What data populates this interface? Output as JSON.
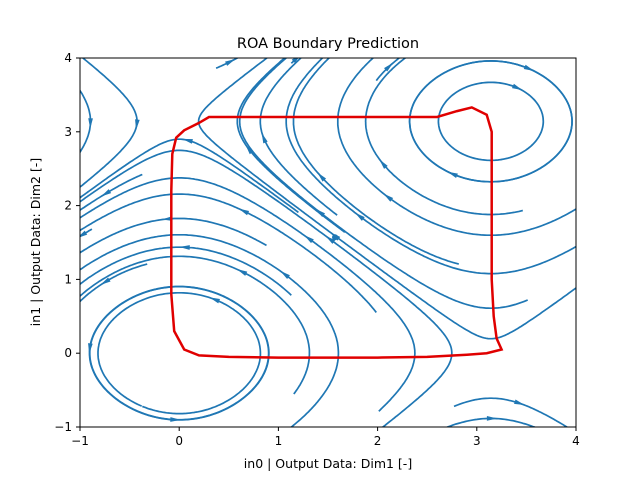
{
  "chart_data": {
    "type": "streamplot",
    "title": "ROA Boundary Prediction",
    "xlabel": "in0 | Output Data: Dim1 [-]",
    "ylabel": "in1 | Output Data: Dim2 [-]",
    "xlim": [
      -1,
      4
    ],
    "ylim": [
      -1,
      4
    ],
    "xticks": [
      -1,
      0,
      1,
      2,
      3,
      4
    ],
    "yticks": [
      -1,
      0,
      1,
      2,
      3,
      4
    ],
    "xtick_labels": [
      "−1",
      "0",
      "1",
      "2",
      "3",
      "4"
    ],
    "ytick_labels": [
      "−1",
      "0",
      "1",
      "2",
      "3",
      "4"
    ],
    "grid": false,
    "stream_color": "#1f77b4",
    "boundary_color": "#e00000",
    "field_center": [
      1.5708,
      1.5708
    ],
    "field_period": 3.14159,
    "roa_boundary": [
      [
        0.3,
        3.2
      ],
      [
        0.6,
        3.2
      ],
      [
        1.0,
        3.2
      ],
      [
        1.5,
        3.2
      ],
      [
        2.0,
        3.2
      ],
      [
        2.6,
        3.2
      ],
      [
        2.8,
        3.28
      ],
      [
        2.95,
        3.33
      ],
      [
        3.1,
        3.23
      ],
      [
        3.15,
        3.0
      ],
      [
        3.15,
        2.5
      ],
      [
        3.15,
        2.0
      ],
      [
        3.15,
        1.5
      ],
      [
        3.15,
        1.0
      ],
      [
        3.17,
        0.5
      ],
      [
        3.2,
        0.2
      ],
      [
        3.25,
        0.05
      ],
      [
        3.1,
        0.0
      ],
      [
        2.9,
        -0.02
      ],
      [
        2.5,
        -0.05
      ],
      [
        2.0,
        -0.06
      ],
      [
        1.5,
        -0.06
      ],
      [
        1.0,
        -0.06
      ],
      [
        0.5,
        -0.05
      ],
      [
        0.2,
        -0.03
      ],
      [
        0.05,
        0.05
      ],
      [
        -0.05,
        0.3
      ],
      [
        -0.08,
        0.8
      ],
      [
        -0.08,
        1.5
      ],
      [
        -0.08,
        2.2
      ],
      [
        -0.07,
        2.7
      ],
      [
        -0.03,
        2.92
      ],
      [
        0.05,
        3.02
      ],
      [
        0.2,
        3.12
      ],
      [
        0.3,
        3.2
      ]
    ]
  }
}
